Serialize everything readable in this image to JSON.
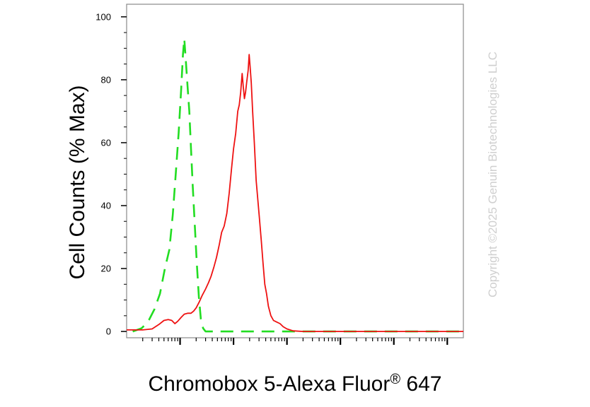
{
  "chart_data": {
    "type": "line",
    "xlabel_main": "Chromobox 5-Alexa Fluor",
    "xlabel_sup": "®",
    "xlabel_tail": " 647",
    "ylabel": "Cell Counts (% Max)",
    "x_scale": "log",
    "xlim": [
      1,
      2000000
    ],
    "ylim": [
      -2,
      104
    ],
    "y_ticks": [
      0,
      20,
      40,
      60,
      80,
      100
    ],
    "watermark": "Copyright ©2025 Genuin Biotechnologies LLC",
    "series": [
      {
        "style": "dashed",
        "color": "#22dd22",
        "points": [
          [
            1.3,
            0
          ],
          [
            1.9,
            1
          ],
          [
            2.5,
            3
          ],
          [
            3.3,
            7
          ],
          [
            4.2,
            12
          ],
          [
            5.2,
            20
          ],
          [
            6.3,
            26
          ],
          [
            7.3,
            37
          ],
          [
            8.3,
            50
          ],
          [
            9.4,
            63
          ],
          [
            10.5,
            77
          ],
          [
            11.3,
            88
          ],
          [
            12.0,
            93
          ],
          [
            12.7,
            87
          ],
          [
            13.8,
            78
          ],
          [
            14.9,
            70
          ],
          [
            16.0,
            58
          ],
          [
            17.3,
            46
          ],
          [
            18.8,
            34
          ],
          [
            20.5,
            22
          ],
          [
            22.5,
            11
          ],
          [
            24.5,
            4
          ],
          [
            27,
            1
          ],
          [
            30,
            0
          ],
          [
            1000,
            0
          ],
          [
            2000000,
            0
          ]
        ]
      },
      {
        "style": "solid",
        "color": "#ee1111",
        "points": [
          [
            1,
            0.5
          ],
          [
            2,
            0.5
          ],
          [
            3,
            0.8
          ],
          [
            4,
            2.2
          ],
          [
            5,
            3.5
          ],
          [
            6,
            3.8
          ],
          [
            7,
            3.5
          ],
          [
            8,
            2.5
          ],
          [
            9,
            3.2
          ],
          [
            10.5,
            4.5
          ],
          [
            12,
            5.5
          ],
          [
            14,
            5.8
          ],
          [
            16,
            5.8
          ],
          [
            18,
            6.5
          ],
          [
            20,
            7.5
          ],
          [
            23,
            9.5
          ],
          [
            26,
            11.5
          ],
          [
            30,
            13.5
          ],
          [
            34,
            15.5
          ],
          [
            38,
            17.5
          ],
          [
            43,
            20.5
          ],
          [
            48,
            23.5
          ],
          [
            54,
            27.5
          ],
          [
            60,
            31.5
          ],
          [
            67,
            33.5
          ],
          [
            75,
            37.5
          ],
          [
            83,
            44
          ],
          [
            92,
            52
          ],
          [
            100,
            58
          ],
          [
            110,
            63
          ],
          [
            120,
            70
          ],
          [
            128,
            72
          ],
          [
            136,
            76
          ],
          [
            145,
            82
          ],
          [
            152,
            78
          ],
          [
            160,
            74
          ],
          [
            168,
            76
          ],
          [
            176,
            79
          ],
          [
            188,
            83
          ],
          [
            196,
            88
          ],
          [
            205,
            84
          ],
          [
            215,
            79
          ],
          [
            228,
            70
          ],
          [
            245,
            60
          ],
          [
            265,
            48
          ],
          [
            285,
            42
          ],
          [
            305,
            36
          ],
          [
            330,
            29
          ],
          [
            355,
            22
          ],
          [
            385,
            15
          ],
          [
            415,
            12
          ],
          [
            450,
            8
          ],
          [
            500,
            5
          ],
          [
            560,
            3.5
          ],
          [
            640,
            3
          ],
          [
            740,
            2.5
          ],
          [
            850,
            1.5
          ],
          [
            1000,
            0.8
          ],
          [
            1300,
            0.2
          ],
          [
            2000,
            0
          ],
          [
            2000000,
            0
          ]
        ]
      }
    ]
  }
}
